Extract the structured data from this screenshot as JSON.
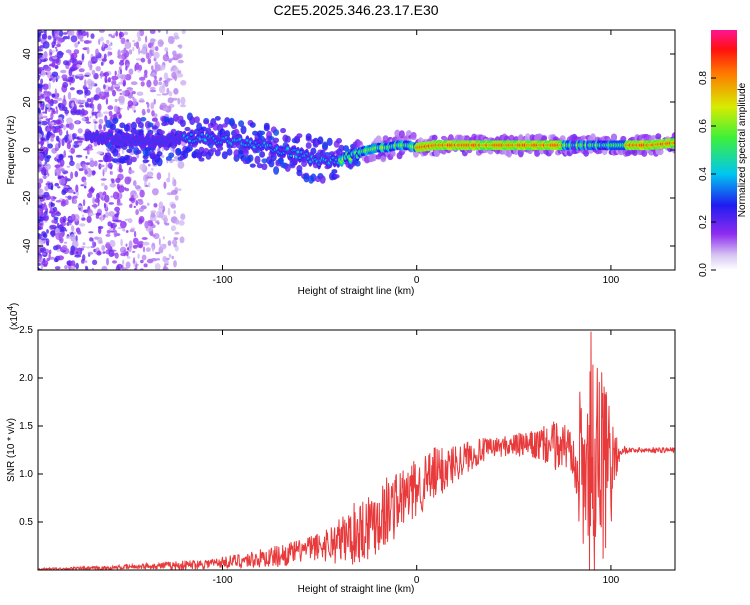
{
  "title": "C2E5.2025.346.23.17.E30",
  "chart_data": [
    {
      "type": "heatmap",
      "xlabel": "Height of straight line (km)",
      "ylabel": "Frequency (Hz)",
      "xlim": [
        -195,
        133
      ],
      "ylim": [
        -50,
        50
      ],
      "xticks": [
        -100,
        0,
        100
      ],
      "yticks": [
        -40,
        -20,
        0,
        20,
        40
      ],
      "ridge": {
        "x": [
          -160,
          -150,
          -140,
          -130,
          -120,
          -110,
          -100,
          -90,
          -80,
          -70,
          -60,
          -50,
          -40,
          -35,
          -30,
          -25,
          -20,
          -15,
          -10,
          -5,
          0,
          10,
          20,
          30,
          40,
          50,
          60,
          70,
          80,
          90,
          100,
          110,
          120,
          133
        ],
        "y": [
          5,
          4,
          4,
          4,
          5,
          5,
          4,
          3,
          2,
          0,
          -2,
          -5,
          -4,
          -3,
          -1,
          0,
          1,
          1,
          2,
          2,
          1,
          2,
          2,
          2,
          2,
          2,
          2,
          2,
          2,
          2,
          2,
          2,
          2,
          3
        ]
      },
      "colorbar": {
        "label": "Normalized spectral amplitude",
        "range": [
          0,
          1
        ],
        "ticks": [
          "0.0",
          "0.2",
          "0.4",
          "0.6",
          "0.8"
        ]
      }
    },
    {
      "type": "line",
      "xlabel": "Height of straight line (km)",
      "ylabel": "SNR (10 * v/v)",
      "multiplier": "(x10",
      "multiplier_exp": "4",
      "multiplier_close": ")",
      "xlim": [
        -195,
        133
      ],
      "ylim": [
        0,
        2.5
      ],
      "xticks": [
        -100,
        0,
        100
      ],
      "yticks": [
        "0.5",
        "1.0",
        "1.5",
        "2.0",
        "2.5"
      ],
      "series": [
        {
          "color": "#e8393b",
          "envelope": {
            "x": [
              -195,
              -160,
              -140,
              -120,
              -100,
              -80,
              -70,
              -60,
              -50,
              -40,
              -30,
              -20,
              -10,
              0,
              10,
              20,
              30,
              40,
              50,
              60,
              70,
              80,
              85,
              90,
              95,
              100,
              105,
              110,
              120,
              133
            ],
            "base": [
              0.01,
              0.02,
              0.04,
              0.05,
              0.08,
              0.12,
              0.15,
              0.2,
              0.25,
              0.3,
              0.4,
              0.55,
              0.7,
              0.85,
              1.0,
              1.12,
              1.22,
              1.28,
              1.3,
              1.3,
              1.3,
              1.28,
              1.25,
              1.2,
              1.2,
              1.25,
              1.25,
              1.25,
              1.25,
              1.25
            ],
            "amp": [
              0.01,
              0.02,
              0.03,
              0.05,
              0.06,
              0.1,
              0.12,
              0.12,
              0.15,
              0.25,
              0.35,
              0.4,
              0.35,
              0.3,
              0.3,
              0.2,
              0.15,
              0.1,
              0.12,
              0.15,
              0.25,
              0.3,
              0.7,
              1.0,
              0.9,
              0.6,
              0.05,
              0.03,
              0.03,
              0.03
            ]
          }
        }
      ]
    }
  ]
}
